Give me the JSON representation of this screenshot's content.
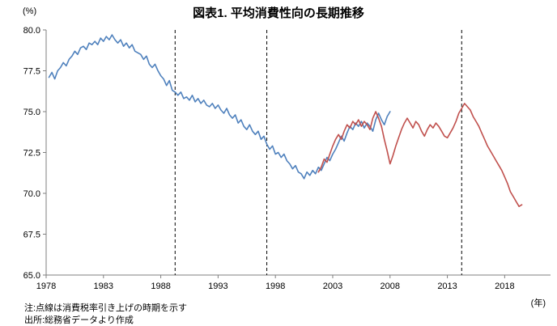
{
  "chart_data": {
    "type": "line",
    "title": "図表1. 平均消費性向の長期推移",
    "y_unit_label": "(%)",
    "x_unit_label": "(年)",
    "ylim": [
      65.0,
      80.0
    ],
    "xlim": [
      1978,
      2022
    ],
    "y_ticks": [
      "80.0",
      "77.5",
      "75.0",
      "72.5",
      "70.0",
      "67.5",
      "65.0"
    ],
    "x_ticks": [
      "1978",
      "1983",
      "1988",
      "1993",
      "1998",
      "2003",
      "2008",
      "2013",
      "2018"
    ],
    "grid": false,
    "legend": "none",
    "dashed_event_lines": {
      "years": [
        1989.25,
        1997.25,
        2014.25
      ]
    },
    "series": [
      {
        "name": "average-propensity-to-consume-earlier-series",
        "color": "#4f81bd",
        "x_start": 1978.25,
        "x_step": 0.25,
        "values": [
          77.1,
          77.4,
          77.0,
          77.5,
          77.7,
          78.0,
          77.8,
          78.2,
          78.4,
          78.7,
          78.5,
          78.9,
          79.0,
          78.8,
          79.2,
          79.1,
          79.3,
          79.1,
          79.5,
          79.3,
          79.6,
          79.4,
          79.7,
          79.4,
          79.2,
          79.4,
          79.0,
          79.2,
          78.9,
          79.1,
          78.7,
          78.6,
          78.5,
          78.2,
          78.4,
          77.9,
          77.7,
          77.9,
          77.5,
          77.2,
          77.0,
          76.6,
          76.9,
          76.3,
          76.2,
          76.0,
          76.2,
          75.8,
          75.9,
          75.7,
          76.0,
          75.6,
          75.8,
          75.5,
          75.7,
          75.4,
          75.3,
          75.5,
          75.2,
          75.4,
          75.1,
          74.9,
          75.2,
          74.8,
          74.6,
          74.8,
          74.3,
          74.5,
          74.1,
          73.9,
          74.2,
          73.8,
          73.6,
          73.8,
          73.3,
          73.5,
          73.0,
          72.7,
          72.9,
          72.4,
          72.5,
          72.2,
          72.4,
          72.0,
          71.8,
          71.5,
          71.7,
          71.3,
          71.2,
          70.9,
          71.3,
          71.1,
          71.4,
          71.2,
          71.6,
          71.4,
          71.8,
          72.2,
          72.0,
          72.4,
          72.7,
          73.1,
          73.5,
          73.2,
          73.7,
          74.1,
          73.9,
          74.3,
          74.1,
          74.4,
          74.0,
          74.3,
          74.1,
          73.8,
          74.5,
          74.9,
          74.5,
          74.2,
          74.7,
          75.0
        ]
      },
      {
        "name": "average-propensity-to-consume-later-series",
        "color": "#c0504d",
        "x_start": 2001.75,
        "x_step": 0.25,
        "values": [
          71.3,
          71.6,
          72.1,
          71.9,
          72.4,
          72.9,
          73.3,
          73.6,
          73.3,
          73.8,
          74.2,
          74.0,
          74.4,
          74.2,
          74.5,
          74.1,
          74.4,
          74.2,
          73.9,
          74.6,
          75.0,
          74.6,
          74.1,
          73.3,
          72.6,
          71.8,
          72.3,
          72.9,
          73.4,
          73.9,
          74.3,
          74.6,
          74.3,
          74.0,
          74.4,
          74.2,
          73.8,
          73.5,
          73.9,
          74.2,
          74.0,
          74.3,
          74.1,
          73.8,
          73.5,
          73.4,
          73.7,
          74.0,
          74.4,
          74.9,
          75.2,
          75.5,
          75.3,
          75.1,
          74.7,
          74.4,
          74.1,
          73.7,
          73.3,
          72.9,
          72.6,
          72.3,
          72.0,
          71.7,
          71.4,
          71.0,
          70.6,
          70.1,
          69.8,
          69.5,
          69.2,
          69.3
        ]
      }
    ]
  },
  "footer": {
    "note": "注:点線は消費税率引き上げの時期を示す",
    "source": "出所:総務省データより作成"
  }
}
